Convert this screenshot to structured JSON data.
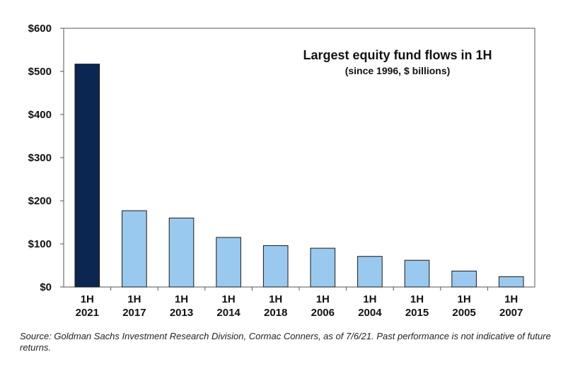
{
  "chart_data": {
    "type": "bar",
    "title": "Largest equity fund flows in 1H",
    "subtitle": "(since 1996, $ billions)",
    "categories": [
      [
        "1H",
        "2021"
      ],
      [
        "1H",
        "2017"
      ],
      [
        "1H",
        "2013"
      ],
      [
        "1H",
        "2014"
      ],
      [
        "1H",
        "2018"
      ],
      [
        "1H",
        "2006"
      ],
      [
        "1H",
        "2004"
      ],
      [
        "1H",
        "2015"
      ],
      [
        "1H",
        "2005"
      ],
      [
        "1H",
        "2007"
      ]
    ],
    "values": [
      517,
      177,
      160,
      115,
      96,
      90,
      71,
      62,
      37,
      24
    ],
    "ylim": [
      0,
      600
    ],
    "yticks": [
      0,
      100,
      200,
      300,
      400,
      500,
      600
    ],
    "ytick_labels": [
      "$0",
      "$100",
      "$200",
      "$300",
      "$400",
      "$500",
      "$600"
    ],
    "colors": {
      "highlight": "#0b2650",
      "default": "#99c9ee",
      "edge": "#1a1a1a"
    },
    "grid": false,
    "legend": "none"
  },
  "source_note": "Source: Goldman Sachs Investment Research Division, Cormac Conners, as of 7/6/21. Past performance is not indicative of future returns."
}
